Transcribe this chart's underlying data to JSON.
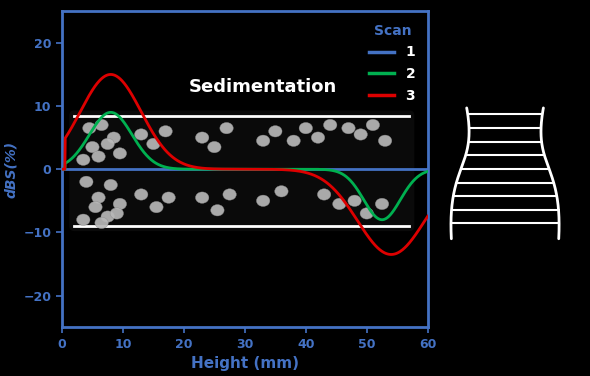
{
  "fig_bg": "#000000",
  "ax_bg": "#000000",
  "border_color": "#4472c4",
  "title": "Sedimentation",
  "title_color": "#ffffff",
  "xlabel": "Height (mm)",
  "ylabel": "dBS(%)",
  "xlabel_color": "#4472c4",
  "ylabel_color": "#4472c4",
  "tick_color": "#4472c4",
  "xlim": [
    0,
    60
  ],
  "ylim": [
    -25,
    25
  ],
  "yticks": [
    -20,
    -10,
    0,
    10,
    20
  ],
  "xticks": [
    0,
    10,
    20,
    30,
    40,
    50,
    60
  ],
  "scan1_color": "#4472c4",
  "scan2_color": "#00b050",
  "scan3_color": "#dd0000",
  "legend_title": "Scan",
  "legend_title_color": "#4472c4",
  "legend_labels": [
    "1",
    "2",
    "3"
  ],
  "tube_x0": 2.0,
  "tube_y0": -9.0,
  "tube_x1": 57.0,
  "tube_y1": 8.5,
  "particles_upper": [
    [
      4.5,
      6.5
    ],
    [
      6.5,
      7.0
    ],
    [
      8.5,
      5.0
    ],
    [
      5.0,
      3.5
    ],
    [
      7.5,
      4.0
    ],
    [
      9.5,
      2.5
    ],
    [
      3.5,
      1.5
    ],
    [
      6.0,
      2.0
    ],
    [
      13.0,
      5.5
    ],
    [
      15.0,
      4.0
    ],
    [
      17.0,
      6.0
    ],
    [
      23.0,
      5.0
    ],
    [
      25.0,
      3.5
    ],
    [
      27.0,
      6.5
    ],
    [
      33.0,
      4.5
    ],
    [
      35.0,
      6.0
    ],
    [
      38.0,
      4.5
    ],
    [
      40.0,
      6.5
    ],
    [
      42.0,
      5.0
    ],
    [
      44.0,
      7.0
    ],
    [
      47.0,
      6.5
    ],
    [
      49.0,
      5.5
    ],
    [
      51.0,
      7.0
    ],
    [
      53.0,
      4.5
    ]
  ],
  "particles_lower": [
    [
      4.0,
      -2.0
    ],
    [
      6.0,
      -4.5
    ],
    [
      8.0,
      -2.5
    ],
    [
      5.5,
      -6.0
    ],
    [
      7.5,
      -7.5
    ],
    [
      9.5,
      -5.5
    ],
    [
      3.5,
      -8.0
    ],
    [
      6.5,
      -8.5
    ],
    [
      9.0,
      -7.0
    ],
    [
      13.0,
      -4.0
    ],
    [
      15.5,
      -6.0
    ],
    [
      17.5,
      -4.5
    ],
    [
      23.0,
      -4.5
    ],
    [
      25.5,
      -6.5
    ],
    [
      27.5,
      -4.0
    ],
    [
      33.0,
      -5.0
    ],
    [
      36.0,
      -3.5
    ],
    [
      43.0,
      -4.0
    ],
    [
      45.5,
      -5.5
    ],
    [
      48.0,
      -5.0
    ],
    [
      50.0,
      -7.0
    ],
    [
      52.5,
      -5.5
    ]
  ]
}
